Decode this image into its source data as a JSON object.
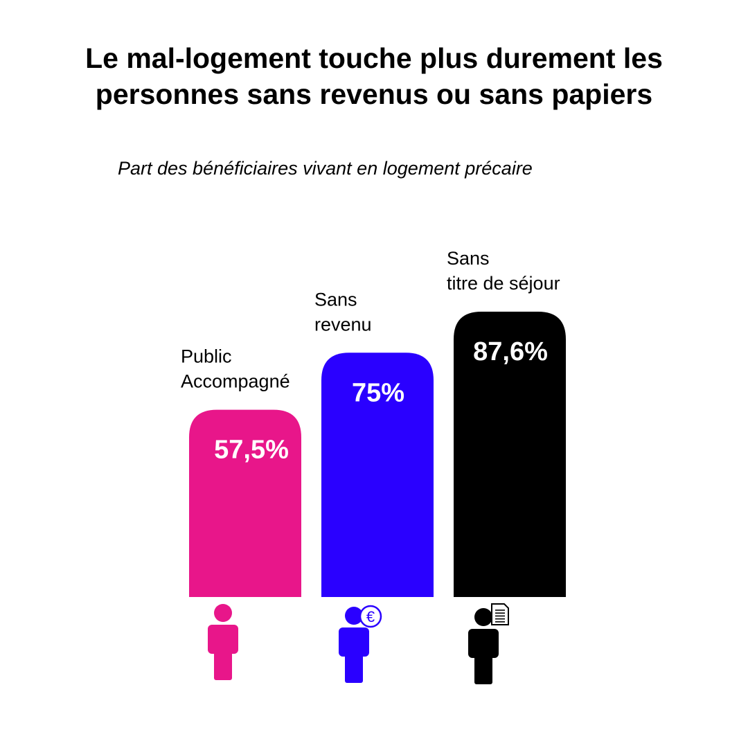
{
  "title_line1": "Le mal-logement touche plus durement les",
  "title_line2": "personnes sans revenus ou sans papiers",
  "subtitle": "Part des bénéficiaires vivant en logement précaire",
  "chart_data": {
    "type": "bar",
    "categories": [
      "Public Accompagné",
      "Sans revenu",
      "Sans titre de séjour"
    ],
    "category_lines": [
      [
        "Public",
        "Accompagné"
      ],
      [
        "Sans",
        "revenu"
      ],
      [
        "Sans",
        "titre de séjour"
      ]
    ],
    "values": [
      57.5,
      75,
      87.6
    ],
    "value_labels": [
      "57,5%",
      "75%",
      "87,6%"
    ],
    "colors": [
      "#e8168a",
      "#2a00ff",
      "#000000"
    ],
    "icons": [
      "person-icon",
      "person-euro-icon",
      "person-document-icon"
    ],
    "euro_symbol": "€",
    "ylim": [
      0,
      100
    ],
    "grid": false,
    "legend": "none"
  }
}
